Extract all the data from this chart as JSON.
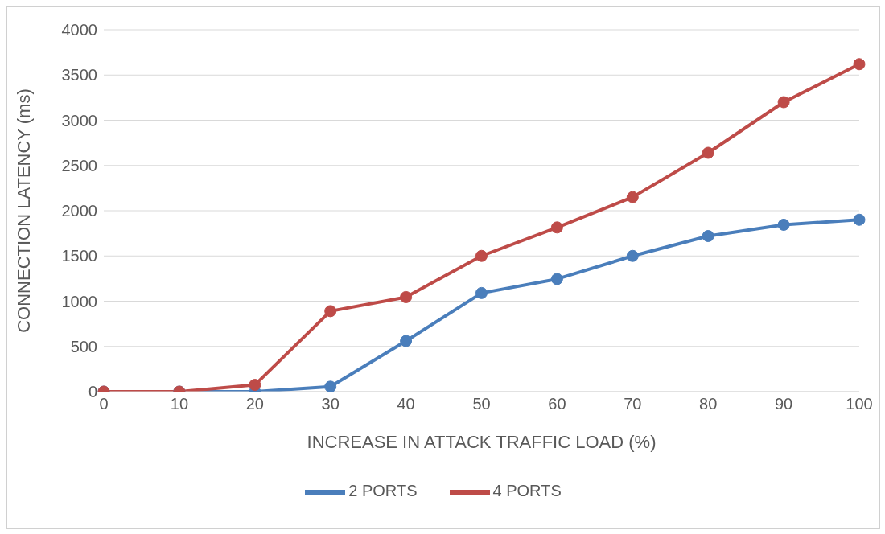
{
  "chart_data": {
    "type": "line",
    "xlabel": "INCREASE IN ATTACK TRAFFIC LOAD (%)",
    "ylabel": "CONNECTION LATENCY (ms)",
    "categories": [
      "0",
      "10",
      "20",
      "30",
      "40",
      "50",
      "60",
      "70",
      "80",
      "90",
      "100"
    ],
    "series": [
      {
        "name": "2 PORTS",
        "color": "#4a7ebb",
        "values": [
          0,
          0,
          0,
          55,
          560,
          1090,
          1245,
          1500,
          1720,
          1845,
          1900
        ]
      },
      {
        "name": "4 PORTS",
        "color": "#be4b48",
        "values": [
          0,
          0,
          75,
          890,
          1045,
          1500,
          1815,
          2150,
          2640,
          3200,
          3620
        ]
      }
    ],
    "ylim": [
      0,
      4000
    ],
    "yticks": [
      0,
      500,
      1000,
      1500,
      2000,
      2500,
      3000,
      3500,
      4000
    ],
    "grid": "y",
    "legend": "bottom",
    "marker": "circle",
    "line_style": "solid"
  }
}
